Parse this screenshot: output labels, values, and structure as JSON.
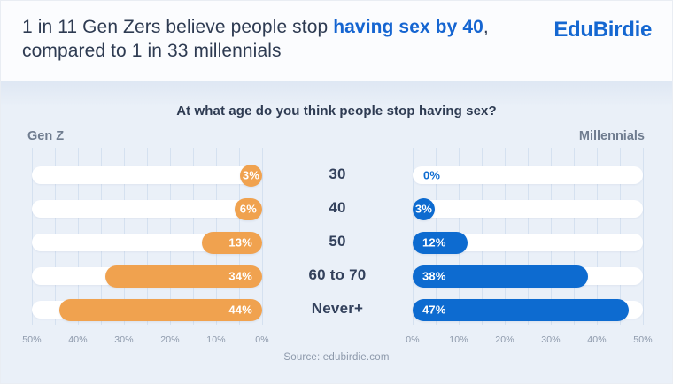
{
  "header": {
    "title_part1": "1 in 11 Gen Zers believe people stop ",
    "title_highlight": "having sex by 40",
    "title_separator": ",",
    "title_line2": "compared to 1 in 33 millennials",
    "brand": "EduBirdie"
  },
  "chart": {
    "title": "At what age do you think people stop having sex?",
    "left_group_label": "Gen Z",
    "right_group_label": "Millennials",
    "source": "Source: edubirdie.com"
  },
  "chart_data": {
    "type": "bar",
    "title": "At what age do you think people stop having sex?",
    "categories": [
      "30",
      "40",
      "50",
      "60 to 70",
      "Never+"
    ],
    "series": [
      {
        "name": "Gen Z",
        "side": "left",
        "direction": "right-to-left",
        "color": "#F0A24F",
        "values": [
          3,
          6,
          13,
          34,
          44
        ],
        "labels": [
          "3%",
          "6%",
          "13%",
          "34%",
          "44%"
        ]
      },
      {
        "name": "Millennials",
        "side": "right",
        "direction": "left-to-right",
        "color": "#0D6BD0",
        "values": [
          0,
          3,
          12,
          38,
          47
        ],
        "labels": [
          "0%",
          "3%",
          "12%",
          "38%",
          "47%"
        ]
      }
    ],
    "xlim": [
      0,
      50
    ],
    "gridline_step_percent": 5,
    "axis_tick_step_percent": 10,
    "axis_ticks_left_chart": [
      "50%",
      "40%",
      "30%",
      "20%",
      "10%",
      "0%"
    ],
    "axis_ticks_right_chart": [
      "0%",
      "10%",
      "20%",
      "30%",
      "40%",
      "50%"
    ],
    "legend_position": "above-plots",
    "grid": true
  },
  "colors": {
    "genz_bar": "#F0A24F",
    "millennial_bar": "#0D6BD0",
    "brand_blue": "#1467D1",
    "highlight_blue": "#1565D1",
    "headline_text": "#2E3B52",
    "category_text": "#33415C",
    "group_label_text": "#707D90",
    "panel_bg": "#EAF0F8",
    "track_white": "#FFFFFF",
    "gridline": "#D5E1F0",
    "muted_text": "#8D99AB",
    "header_bg": "#FBFCFE"
  }
}
